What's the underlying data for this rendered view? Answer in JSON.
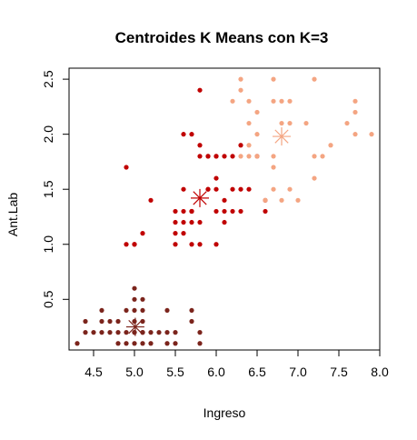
{
  "chart_data": {
    "type": "scatter",
    "title": "Centroides K Means con K=3",
    "xlabel": "Ingreso",
    "ylabel": "Ant.Lab",
    "xlim": [
      4.2,
      8.0
    ],
    "ylim": [
      0.04,
      2.6
    ],
    "xticks": [
      "4.5",
      "5.0",
      "5.5",
      "6.0",
      "6.5",
      "7.0",
      "7.5",
      "8.0"
    ],
    "yticks": [
      "0.5",
      "1.0",
      "1.5",
      "2.0",
      "2.5"
    ],
    "grid": false,
    "legend": "none",
    "series": [
      {
        "color": "#7b241c",
        "x": [
          4.3,
          4.4,
          4.4,
          4.5,
          4.6,
          4.6,
          4.7,
          4.7,
          4.8,
          4.8,
          4.8,
          4.9,
          4.9,
          5.0,
          5.0,
          5.0,
          5.0,
          5.0,
          5.0,
          5.1,
          5.1,
          5.1,
          5.1,
          5.1,
          5.2,
          5.2,
          5.3,
          5.4,
          5.4,
          5.4,
          5.5,
          5.5,
          5.7,
          5.7,
          5.8,
          5.8,
          4.6,
          4.9,
          5.0,
          5.1
        ],
        "y": [
          0.1,
          0.2,
          0.3,
          0.2,
          0.2,
          0.3,
          0.2,
          0.3,
          0.1,
          0.2,
          0.3,
          0.1,
          0.2,
          0.2,
          0.3,
          0.4,
          0.6,
          0.1,
          0.5,
          0.2,
          0.3,
          0.4,
          0.5,
          0.1,
          0.2,
          0.1,
          0.2,
          0.2,
          0.4,
          0.1,
          0.2,
          0.1,
          0.3,
          0.4,
          0.2,
          0.1,
          0.4,
          0.4,
          0.2,
          0.2
        ]
      },
      {
        "color": "#c00000",
        "x": [
          4.9,
          4.9,
          5.0,
          5.0,
          5.1,
          5.2,
          5.5,
          5.5,
          5.5,
          5.5,
          5.6,
          5.6,
          5.6,
          5.6,
          5.7,
          5.7,
          5.7,
          5.7,
          5.7,
          5.8,
          5.8,
          5.8,
          5.8,
          5.9,
          5.9,
          6.0,
          6.0,
          6.0,
          6.0,
          6.0,
          6.1,
          6.1,
          6.1,
          6.2,
          6.2,
          6.3,
          6.3,
          6.3,
          6.4,
          6.5,
          6.6,
          6.6,
          5.6,
          5.9,
          6.2,
          5.8,
          5.9,
          6.1,
          6.0,
          5.7
        ],
        "y": [
          1.7,
          1.0,
          1.0,
          1.0,
          1.1,
          1.4,
          1.3,
          1.2,
          1.0,
          1.1,
          1.3,
          1.2,
          1.5,
          1.1,
          1.3,
          1.2,
          1.0,
          1.3,
          2.0,
          2.4,
          1.2,
          1.0,
          1.9,
          1.8,
          1.5,
          1.5,
          1.6,
          1.0,
          1.8,
          1.3,
          1.4,
          1.3,
          1.2,
          1.5,
          1.3,
          1.3,
          1.5,
          1.9,
          1.5,
          1.8,
          1.4,
          1.3,
          2.0,
          1.8,
          1.8,
          1.8,
          1.5,
          1.8,
          1.8,
          1.3
        ]
      },
      {
        "color": "#f4a582",
        "x": [
          6.3,
          6.3,
          6.4,
          6.4,
          6.5,
          6.5,
          6.6,
          6.7,
          6.7,
          6.7,
          6.8,
          6.8,
          6.9,
          6.9,
          7.0,
          7.1,
          7.2,
          7.2,
          7.2,
          7.3,
          7.4,
          7.6,
          7.7,
          7.7,
          7.7,
          7.9,
          6.5,
          6.4,
          6.7,
          6.7,
          6.8,
          6.9,
          6.3,
          6.4,
          6.2
        ],
        "y": [
          2.5,
          2.4,
          2.3,
          2.1,
          2.0,
          2.2,
          1.4,
          2.5,
          2.3,
          1.5,
          2.3,
          1.4,
          2.1,
          1.5,
          1.4,
          2.1,
          2.5,
          1.8,
          1.6,
          1.8,
          1.9,
          2.1,
          2.3,
          2.2,
          2.0,
          2.0,
          1.8,
          1.8,
          1.7,
          1.8,
          2.1,
          2.3,
          1.8,
          1.9,
          2.3
        ]
      }
    ],
    "centroids": [
      {
        "x": 5.01,
        "y": 0.25,
        "color": "#7b241c"
      },
      {
        "x": 5.8,
        "y": 1.42,
        "color": "#c00000"
      },
      {
        "x": 6.8,
        "y": 1.98,
        "color": "#f4a582"
      }
    ]
  }
}
